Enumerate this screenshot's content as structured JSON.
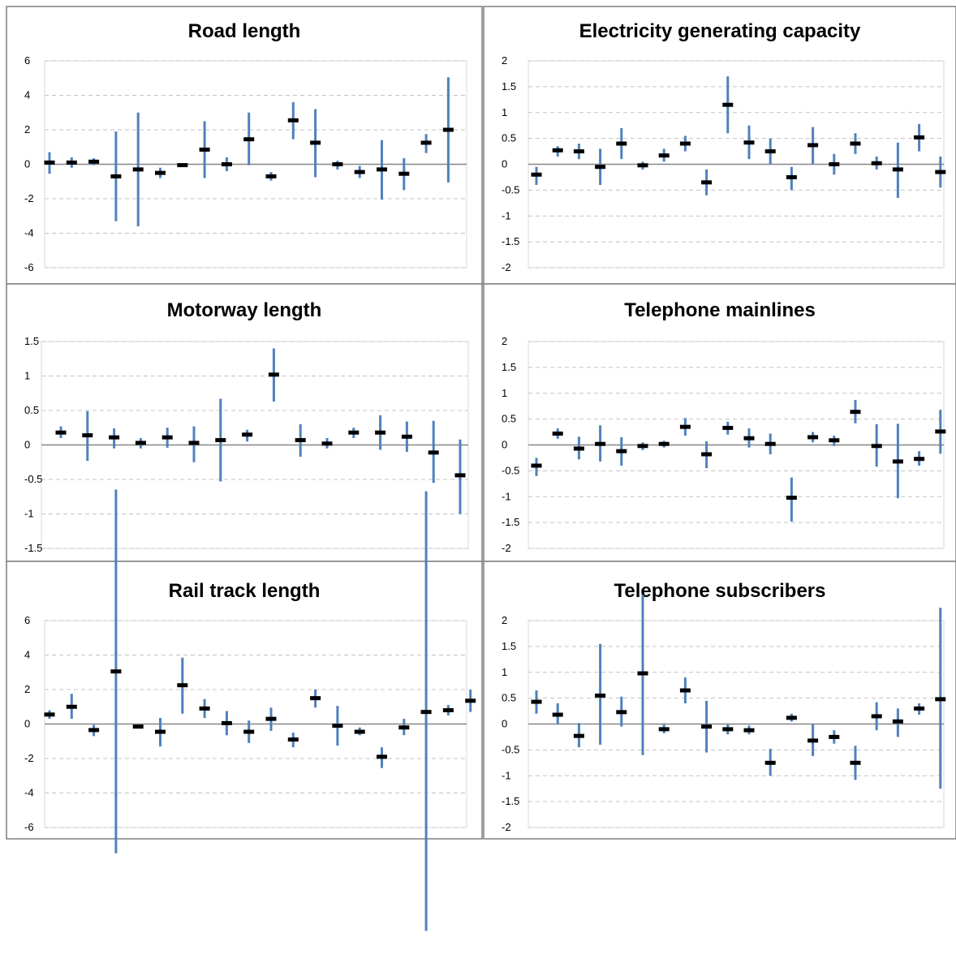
{
  "colors": {
    "whisker": "#4f81bd",
    "point": "#000000"
  },
  "chart_data": [
    {
      "type": "scatter",
      "title": "Road length",
      "ylim": [
        -6,
        6
      ],
      "yticks": [
        6,
        4,
        2,
        0,
        -2,
        -4,
        -6
      ],
      "grid": true,
      "points": [
        {
          "y": 0.1,
          "lo": -0.55,
          "hi": 0.7
        },
        {
          "y": 0.1,
          "lo": -0.2,
          "hi": 0.4
        },
        {
          "y": 0.15,
          "lo": -0.05,
          "hi": 0.35
        },
        {
          "y": -0.7,
          "lo": -3.3,
          "hi": 1.9
        },
        {
          "y": -0.3,
          "lo": -3.6,
          "hi": 3.0
        },
        {
          "y": -0.5,
          "lo": -0.8,
          "hi": -0.2
        },
        {
          "y": -0.05,
          "lo": -0.1,
          "hi": 0.0
        },
        {
          "y": 0.85,
          "lo": -0.8,
          "hi": 2.5
        },
        {
          "y": 0.0,
          "lo": -0.4,
          "hi": 0.4
        },
        {
          "y": 1.45,
          "lo": -0.05,
          "hi": 3.0
        },
        {
          "y": -0.7,
          "lo": -0.95,
          "hi": -0.45
        },
        {
          "y": 2.55,
          "lo": 1.45,
          "hi": 3.6
        },
        {
          "y": 1.25,
          "lo": -0.75,
          "hi": 3.2
        },
        {
          "y": 0.0,
          "lo": -0.3,
          "hi": 0.2
        },
        {
          "y": -0.45,
          "lo": -0.8,
          "hi": -0.1
        },
        {
          "y": -0.3,
          "lo": -2.05,
          "hi": 1.4
        },
        {
          "y": -0.55,
          "lo": -1.5,
          "hi": 0.35
        },
        {
          "y": 1.25,
          "lo": 0.65,
          "hi": 1.75
        },
        {
          "y": 2.0,
          "lo": -1.05,
          "hi": 5.05
        }
      ]
    },
    {
      "type": "scatter",
      "title": "Electricity generating capacity",
      "ylim": [
        -2,
        2
      ],
      "yticks": [
        2,
        1.5,
        1,
        0.5,
        0,
        -0.5,
        -1,
        -1.5,
        -2
      ],
      "grid": true,
      "points": [
        {
          "y": -0.2,
          "lo": -0.4,
          "hi": -0.05
        },
        {
          "y": 0.27,
          "lo": 0.15,
          "hi": 0.35
        },
        {
          "y": 0.25,
          "lo": 0.1,
          "hi": 0.4
        },
        {
          "y": -0.05,
          "lo": -0.4,
          "hi": 0.3
        },
        {
          "y": 0.4,
          "lo": 0.1,
          "hi": 0.7
        },
        {
          "y": -0.02,
          "lo": -0.1,
          "hi": 0.05
        },
        {
          "y": 0.17,
          "lo": 0.05,
          "hi": 0.3
        },
        {
          "y": 0.4,
          "lo": 0.25,
          "hi": 0.55
        },
        {
          "y": -0.35,
          "lo": -0.6,
          "hi": -0.1
        },
        {
          "y": 1.15,
          "lo": 0.6,
          "hi": 1.7
        },
        {
          "y": 0.42,
          "lo": 0.1,
          "hi": 0.75
        },
        {
          "y": 0.25,
          "lo": 0.0,
          "hi": 0.5
        },
        {
          "y": -0.25,
          "lo": -0.5,
          "hi": -0.05
        },
        {
          "y": 0.37,
          "lo": 0.0,
          "hi": 0.72
        },
        {
          "y": 0.0,
          "lo": -0.2,
          "hi": 0.2
        },
        {
          "y": 0.4,
          "lo": 0.2,
          "hi": 0.6
        },
        {
          "y": 0.02,
          "lo": -0.1,
          "hi": 0.15
        },
        {
          "y": -0.1,
          "lo": -0.65,
          "hi": 0.42
        },
        {
          "y": 0.52,
          "lo": 0.25,
          "hi": 0.78
        },
        {
          "y": -0.15,
          "lo": -0.45,
          "hi": 0.15
        }
      ]
    },
    {
      "type": "scatter",
      "title": "Motorway length",
      "ylim": [
        -1.5,
        1.5
      ],
      "yticks": [
        1.5,
        1,
        0.5,
        0,
        -0.5,
        -1,
        -1.5
      ],
      "grid": true,
      "points": [
        {
          "y": 0.18,
          "lo": 0.1,
          "hi": 0.27
        },
        {
          "y": 0.14,
          "lo": -0.23,
          "hi": 0.49
        },
        {
          "y": 0.11,
          "lo": -0.05,
          "hi": 0.24
        },
        {
          "y": 0.03,
          "lo": -0.05,
          "hi": 0.1
        },
        {
          "y": 0.11,
          "lo": -0.04,
          "hi": 0.25
        },
        {
          "y": 0.03,
          "lo": -0.25,
          "hi": 0.27
        },
        {
          "y": 0.07,
          "lo": -0.53,
          "hi": 0.67
        },
        {
          "y": 0.15,
          "lo": 0.05,
          "hi": 0.22
        },
        {
          "y": 1.02,
          "lo": 0.63,
          "hi": 1.4
        },
        {
          "y": 0.07,
          "lo": -0.17,
          "hi": 0.3
        },
        {
          "y": 0.02,
          "lo": -0.05,
          "hi": 0.1
        },
        {
          "y": 0.18,
          "lo": 0.1,
          "hi": 0.25
        },
        {
          "y": 0.18,
          "lo": -0.07,
          "hi": 0.43
        },
        {
          "y": 0.12,
          "lo": -0.1,
          "hi": 0.34
        },
        {
          "y": -0.11,
          "lo": -0.55,
          "hi": 0.35
        },
        {
          "y": -0.44,
          "lo": -1.0,
          "hi": 0.08
        }
      ]
    },
    {
      "type": "scatter",
      "title": "Telephone mainlines",
      "ylim": [
        -2,
        2
      ],
      "yticks": [
        2,
        1.5,
        1,
        0.5,
        0,
        -0.5,
        -1,
        -1.5,
        -2
      ],
      "grid": true,
      "points": [
        {
          "y": -0.4,
          "lo": -0.6,
          "hi": -0.25
        },
        {
          "y": 0.22,
          "lo": 0.12,
          "hi": 0.32
        },
        {
          "y": -0.07,
          "lo": -0.28,
          "hi": 0.16
        },
        {
          "y": 0.02,
          "lo": -0.32,
          "hi": 0.38
        },
        {
          "y": -0.12,
          "lo": -0.4,
          "hi": 0.15
        },
        {
          "y": -0.02,
          "lo": -0.1,
          "hi": 0.05
        },
        {
          "y": 0.02,
          "lo": -0.05,
          "hi": 0.08
        },
        {
          "y": 0.35,
          "lo": 0.18,
          "hi": 0.52
        },
        {
          "y": -0.18,
          "lo": -0.45,
          "hi": 0.07
        },
        {
          "y": 0.33,
          "lo": 0.2,
          "hi": 0.45
        },
        {
          "y": 0.13,
          "lo": -0.05,
          "hi": 0.32
        },
        {
          "y": 0.02,
          "lo": -0.18,
          "hi": 0.22
        },
        {
          "y": -1.02,
          "lo": -1.48,
          "hi": -0.63
        },
        {
          "y": 0.15,
          "lo": 0.05,
          "hi": 0.25
        },
        {
          "y": 0.09,
          "lo": -0.02,
          "hi": 0.18
        },
        {
          "y": 0.64,
          "lo": 0.42,
          "hi": 0.87
        },
        {
          "y": -0.02,
          "lo": -0.42,
          "hi": 0.4
        },
        {
          "y": -0.32,
          "lo": -1.03,
          "hi": 0.41
        },
        {
          "y": -0.27,
          "lo": -0.4,
          "hi": -0.12
        },
        {
          "y": 0.26,
          "lo": -0.17,
          "hi": 0.68
        }
      ]
    },
    {
      "type": "scatter",
      "title": "Rail track length",
      "ylim": [
        -6,
        6
      ],
      "yticks": [
        6,
        4,
        2,
        0,
        -2,
        -4,
        -6
      ],
      "grid": true,
      "points": [
        {
          "y": 0.55,
          "lo": 0.3,
          "hi": 0.8
        },
        {
          "y": 1.0,
          "lo": 0.3,
          "hi": 1.75
        },
        {
          "y": -0.35,
          "lo": -0.7,
          "hi": -0.05
        },
        {
          "y": 3.05,
          "lo": -7.5,
          "hi": 13.6
        },
        {
          "y": -0.15,
          "lo": -0.25,
          "hi": -0.05
        },
        {
          "y": -0.45,
          "lo": -1.3,
          "hi": 0.35
        },
        {
          "y": 2.25,
          "lo": 0.6,
          "hi": 3.85
        },
        {
          "y": 0.9,
          "lo": 0.35,
          "hi": 1.45
        },
        {
          "y": 0.05,
          "lo": -0.65,
          "hi": 0.75
        },
        {
          "y": -0.45,
          "lo": -1.1,
          "hi": 0.2
        },
        {
          "y": 0.3,
          "lo": -0.4,
          "hi": 0.95
        },
        {
          "y": -0.9,
          "lo": -1.35,
          "hi": -0.5
        },
        {
          "y": 1.5,
          "lo": 0.95,
          "hi": 2.0
        },
        {
          "y": -0.1,
          "lo": -1.25,
          "hi": 1.05
        },
        {
          "y": -0.45,
          "lo": -0.65,
          "hi": -0.2
        },
        {
          "y": -1.9,
          "lo": -2.55,
          "hi": -1.35
        },
        {
          "y": -0.2,
          "lo": -0.65,
          "hi": 0.3
        },
        {
          "y": 0.7,
          "lo": -12.0,
          "hi": 13.5
        },
        {
          "y": 0.8,
          "lo": 0.5,
          "hi": 1.1
        },
        {
          "y": 1.35,
          "lo": 0.7,
          "hi": 2.0
        }
      ]
    },
    {
      "type": "scatter",
      "title": "Telephone subscribers",
      "ylim": [
        -2,
        2
      ],
      "yticks": [
        2,
        1.5,
        1,
        0.5,
        0,
        -0.5,
        -1,
        -1.5,
        -2
      ],
      "grid": true,
      "points": [
        {
          "y": 0.43,
          "lo": 0.2,
          "hi": 0.65
        },
        {
          "y": 0.18,
          "lo": 0.0,
          "hi": 0.4
        },
        {
          "y": -0.23,
          "lo": -0.45,
          "hi": 0.02
        },
        {
          "y": 0.55,
          "lo": -0.4,
          "hi": 1.55
        },
        {
          "y": 0.23,
          "lo": -0.05,
          "hi": 0.53
        },
        {
          "y": 0.98,
          "lo": -0.6,
          "hi": 2.5
        },
        {
          "y": -0.1,
          "lo": -0.18,
          "hi": 0.0
        },
        {
          "y": 0.65,
          "lo": 0.4,
          "hi": 0.9
        },
        {
          "y": -0.05,
          "lo": -0.55,
          "hi": 0.45
        },
        {
          "y": -0.1,
          "lo": -0.2,
          "hi": 0.0
        },
        {
          "y": -0.12,
          "lo": -0.2,
          "hi": -0.03
        },
        {
          "y": -0.75,
          "lo": -1.0,
          "hi": -0.48
        },
        {
          "y": 0.12,
          "lo": 0.05,
          "hi": 0.2
        },
        {
          "y": -0.32,
          "lo": -0.62,
          "hi": 0.0
        },
        {
          "y": -0.25,
          "lo": -0.38,
          "hi": -0.12
        },
        {
          "y": -0.75,
          "lo": -1.08,
          "hi": -0.42
        },
        {
          "y": 0.15,
          "lo": -0.12,
          "hi": 0.42
        },
        {
          "y": 0.05,
          "lo": -0.25,
          "hi": 0.3
        },
        {
          "y": 0.3,
          "lo": 0.18,
          "hi": 0.4
        },
        {
          "y": 0.48,
          "lo": -1.25,
          "hi": 2.25
        }
      ]
    }
  ]
}
